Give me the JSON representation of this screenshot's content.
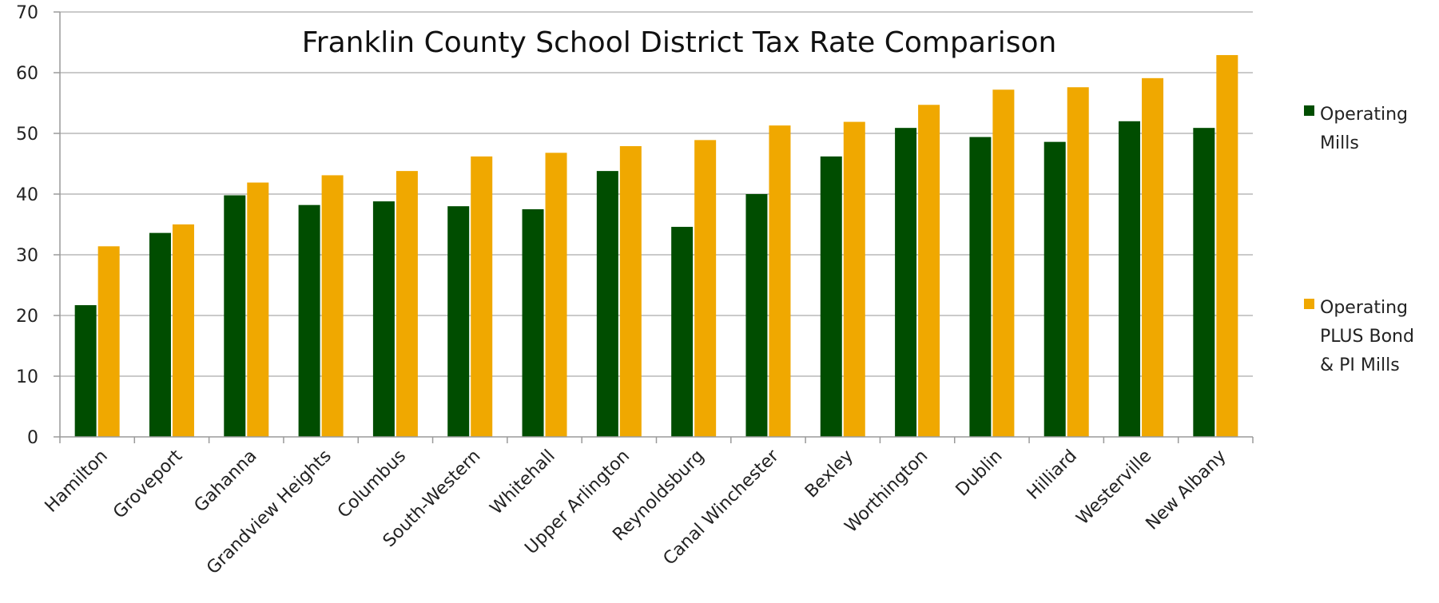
{
  "chart_data": {
    "type": "bar",
    "title": "Franklin County School District Tax Rate Comparison",
    "xlabel": "",
    "ylabel": "",
    "ylim": [
      0,
      70
    ],
    "yticks": [
      0,
      10,
      20,
      30,
      40,
      50,
      60,
      70
    ],
    "grid": true,
    "legend_position": "right",
    "categories": [
      "Hamilton",
      "Groveport",
      "Gahanna",
      "Grandview Heights",
      "Columbus",
      "South-Western",
      "Whitehall",
      "Upper Arlington",
      "Reynoldsburg",
      "Canal Winchester",
      "Bexley",
      "Worthington",
      "Dublin",
      "Hilliard",
      "Westerville",
      "New Albany"
    ],
    "series": [
      {
        "name": "Operating Mills",
        "legend_lines": [
          "Operating",
          "Mills"
        ],
        "color": "#004d00",
        "values": [
          21.7,
          33.6,
          39.8,
          38.2,
          38.8,
          38.0,
          37.5,
          43.8,
          34.6,
          40.0,
          46.2,
          50.9,
          49.4,
          48.6,
          52.0,
          50.9
        ]
      },
      {
        "name": "Operating PLUS Bond & PI Mills",
        "legend_lines": [
          "Operating",
          "PLUS Bond",
          "& PI Mills"
        ],
        "color": "#f0a800",
        "values": [
          31.4,
          35.0,
          41.9,
          43.1,
          43.8,
          46.2,
          46.8,
          47.9,
          48.9,
          51.3,
          51.9,
          54.7,
          57.2,
          57.6,
          59.1,
          62.9
        ]
      }
    ]
  }
}
